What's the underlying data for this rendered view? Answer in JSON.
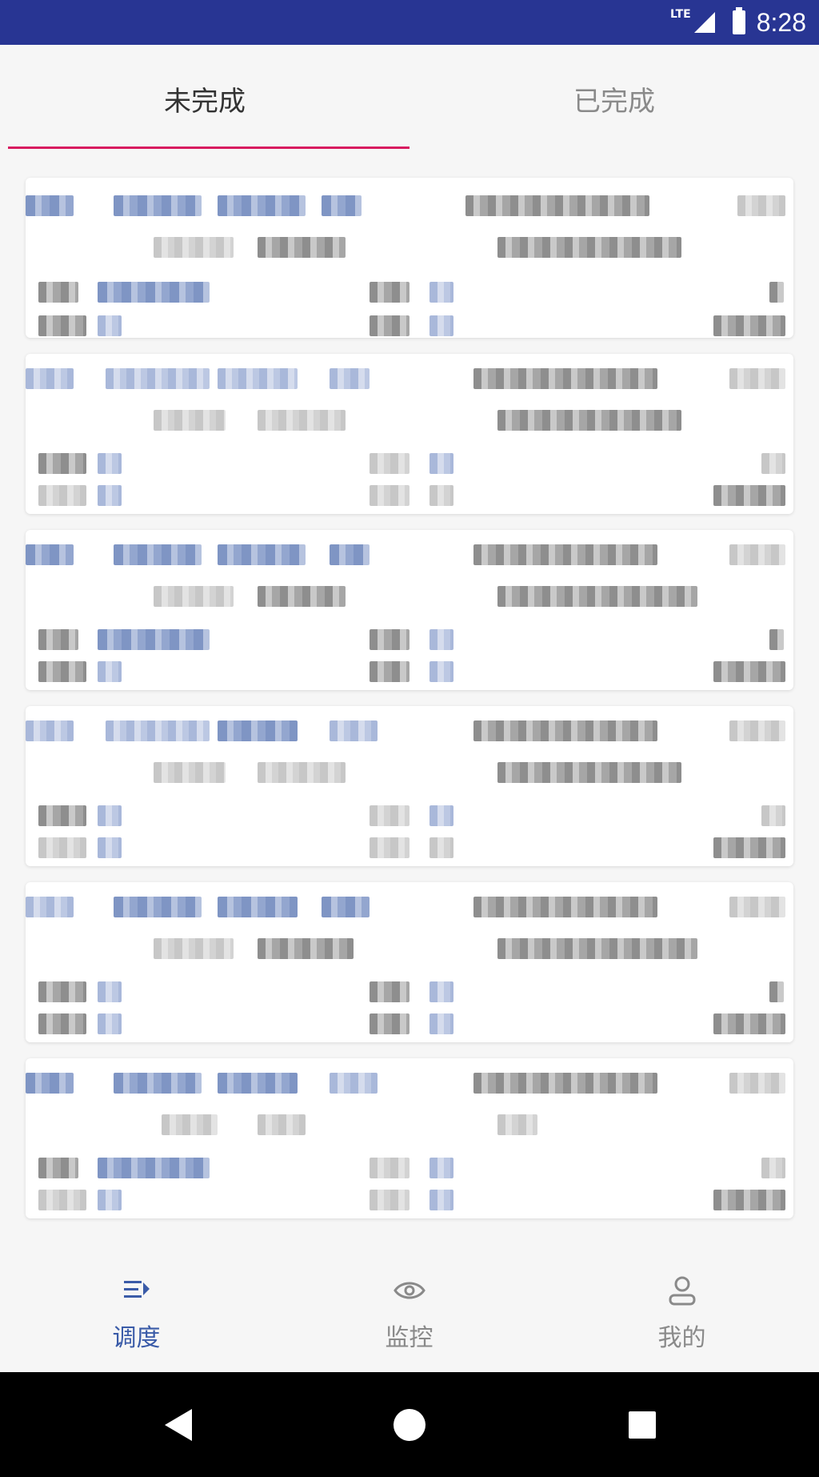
{
  "status_bar": {
    "network": "LTE",
    "time": "8:28"
  },
  "tabs": [
    {
      "label": "未完成",
      "active": true
    },
    {
      "label": "已完成",
      "active": false
    }
  ],
  "bottom_nav": [
    {
      "label": "调度",
      "icon": "dispatch-icon",
      "active": true
    },
    {
      "label": "监控",
      "icon": "eye-icon",
      "active": false
    },
    {
      "label": "我的",
      "icon": "person-icon",
      "active": false
    }
  ],
  "system_nav": {
    "back": "back-icon",
    "home": "home-icon",
    "recents": "recents-icon"
  },
  "colors": {
    "status_bar": "#283593",
    "tab_indicator": "#d81b60",
    "nav_active": "#3a5ba8"
  }
}
